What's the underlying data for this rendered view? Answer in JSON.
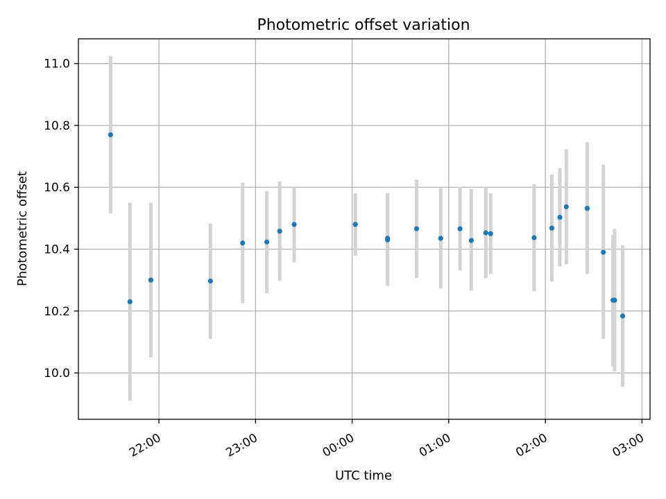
{
  "chart_data": {
    "type": "scatter",
    "title": "Photometric offset variation",
    "xlabel": "UTC time",
    "ylabel": "Photometric offset",
    "x_ticks": [
      "22:00",
      "23:00",
      "00:00",
      "01:00",
      "02:00",
      "03:00"
    ],
    "y_ticks": [
      10.0,
      10.2,
      10.4,
      10.6,
      10.8,
      11.0
    ],
    "grid": true,
    "x_unit": "UTC clock time (HH:MM); values after midnight roll over to the next day",
    "xlim": [
      "21:10",
      "03:05"
    ],
    "ylim": [
      9.85,
      11.08
    ],
    "colors": {
      "points": "#1f77b4",
      "error_bars": "#d3d3d3",
      "grid": "#b0b0b0"
    },
    "points": [
      {
        "x": "21:30",
        "y": 10.77,
        "ylo": 10.515,
        "yhi": 11.025
      },
      {
        "x": "21:42",
        "y": 10.23,
        "ylo": 9.91,
        "yhi": 10.55
      },
      {
        "x": "21:55",
        "y": 10.3,
        "ylo": 10.05,
        "yhi": 10.55
      },
      {
        "x": "22:32",
        "y": 10.297,
        "ylo": 10.11,
        "yhi": 10.483
      },
      {
        "x": "22:52",
        "y": 10.42,
        "ylo": 10.225,
        "yhi": 10.615
      },
      {
        "x": "23:07",
        "y": 10.423,
        "ylo": 10.258,
        "yhi": 10.588
      },
      {
        "x": "23:15",
        "y": 10.458,
        "ylo": 10.297,
        "yhi": 10.619
      },
      {
        "x": "23:24",
        "y": 10.48,
        "ylo": 10.357,
        "yhi": 10.603
      },
      {
        "x": "00:02",
        "y": 10.48,
        "ylo": 10.379,
        "yhi": 10.581
      },
      {
        "x": "00:22",
        "y": 10.435,
        "ylo": 10.281,
        "yhi": 10.581
      },
      {
        "x": "00:22",
        "y": 10.43,
        "ylo": 10.3,
        "yhi": 10.57
      },
      {
        "x": "00:40",
        "y": 10.466,
        "ylo": 10.307,
        "yhi": 10.625
      },
      {
        "x": "00:55",
        "y": 10.435,
        "ylo": 10.273,
        "yhi": 10.597
      },
      {
        "x": "01:07",
        "y": 10.466,
        "ylo": 10.331,
        "yhi": 10.601
      },
      {
        "x": "01:14",
        "y": 10.428,
        "ylo": 10.266,
        "yhi": 10.594
      },
      {
        "x": "01:23",
        "y": 10.453,
        "ylo": 10.306,
        "yhi": 10.6
      },
      {
        "x": "01:26",
        "y": 10.45,
        "ylo": 10.32,
        "yhi": 10.58
      },
      {
        "x": "01:53",
        "y": 10.437,
        "ylo": 10.264,
        "yhi": 10.61
      },
      {
        "x": "02:04",
        "y": 10.468,
        "ylo": 10.295,
        "yhi": 10.641
      },
      {
        "x": "02:09",
        "y": 10.503,
        "ylo": 10.344,
        "yhi": 10.662
      },
      {
        "x": "02:13",
        "y": 10.537,
        "ylo": 10.351,
        "yhi": 10.723
      },
      {
        "x": "02:26",
        "y": 10.532,
        "ylo": 10.32,
        "yhi": 10.746
      },
      {
        "x": "02:36",
        "y": 10.39,
        "ylo": 10.11,
        "yhi": 10.673
      },
      {
        "x": "02:43",
        "y": 10.235,
        "ylo": 10.005,
        "yhi": 10.465
      },
      {
        "x": "02:42",
        "y": 10.235,
        "ylo": 10.02,
        "yhi": 10.445
      },
      {
        "x": "02:48",
        "y": 10.184,
        "ylo": 9.955,
        "yhi": 10.413
      }
    ]
  }
}
